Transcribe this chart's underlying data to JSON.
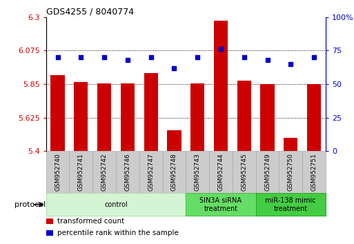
{
  "title": "GDS4255 / 8040774",
  "samples": [
    "GSM952740",
    "GSM952741",
    "GSM952742",
    "GSM952746",
    "GSM952747",
    "GSM952748",
    "GSM952743",
    "GSM952744",
    "GSM952745",
    "GSM952749",
    "GSM952750",
    "GSM952751"
  ],
  "bar_values": [
    5.91,
    5.865,
    5.855,
    5.855,
    5.925,
    5.54,
    5.855,
    6.275,
    5.875,
    5.85,
    5.49,
    5.85
  ],
  "dot_values": [
    70,
    70,
    70,
    68,
    70,
    62,
    70,
    76,
    70,
    68,
    65,
    70
  ],
  "bar_color": "#cc0000",
  "dot_color": "#0000cc",
  "ylim_left": [
    5.4,
    6.3
  ],
  "ylim_right": [
    0,
    100
  ],
  "yticks_left": [
    5.4,
    5.625,
    5.85,
    6.075,
    6.3
  ],
  "ytick_labels_left": [
    "5.4",
    "5.625",
    "5.85",
    "6.075",
    "6.3"
  ],
  "yticks_right": [
    0,
    25,
    50,
    75,
    100
  ],
  "ytick_labels_right": [
    "0",
    "25",
    "50",
    "75",
    "100%"
  ],
  "gridlines": [
    5.625,
    5.85,
    6.075
  ],
  "groups": [
    {
      "label": "control",
      "start": 0,
      "end": 6,
      "color": "#d4f5d4",
      "edge_color": "#aaddaa"
    },
    {
      "label": "SIN3A siRNA\ntreatment",
      "start": 6,
      "end": 9,
      "color": "#66dd66",
      "edge_color": "#44bb44"
    },
    {
      "label": "miR-138 mimic\ntreatment",
      "start": 9,
      "end": 12,
      "color": "#44cc44",
      "edge_color": "#22aa22"
    }
  ],
  "protocol_label": "protocol",
  "legend_bar_label": "transformed count",
  "legend_dot_label": "percentile rank within the sample",
  "left_axis_color": "#cc0000",
  "right_axis_color": "#0000cc",
  "sample_box_color": "#cccccc",
  "sample_box_edge": "#aaaaaa"
}
